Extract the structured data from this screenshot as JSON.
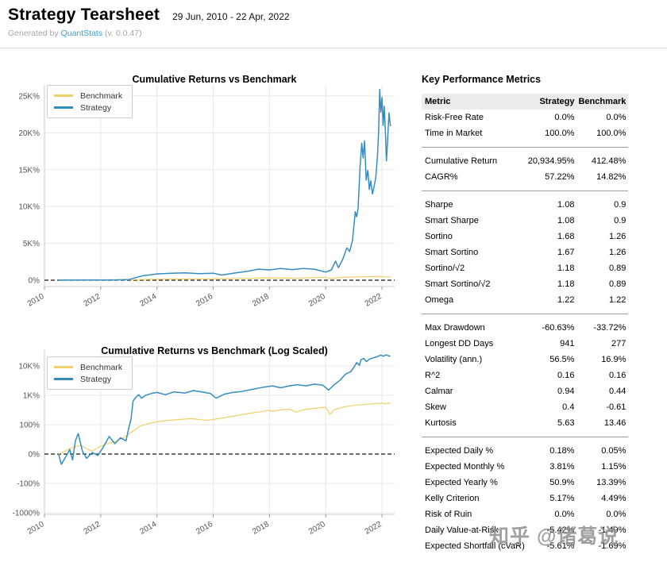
{
  "header": {
    "title": "Strategy Tearsheet",
    "date_range": "29 Jun, 2010 - 22 Apr, 2022",
    "generated_prefix": "Generated by",
    "generator_name": "QuantStats",
    "generator_version": "(v. 0.0.47)"
  },
  "colors": {
    "strategy": "#348dc1",
    "benchmark": "#f2cf68",
    "grid": "#e8e8e8",
    "spine": "#cccccc",
    "zero_line": "#111111",
    "tick_label": "#555555",
    "link": "#35a2d9"
  },
  "watermark": "知乎 @诸葛说",
  "chart_data": [
    {
      "type": "line",
      "title": "Cumulative Returns vs Benchmark",
      "xlabel": "",
      "ylabel": "",
      "yscale": "linear",
      "grid": true,
      "legend": [
        "Benchmark",
        "Strategy"
      ],
      "legend_position": "upper-left",
      "xlim": [
        2010.0,
        2022.45
      ],
      "ylim": [
        -860,
        26500
      ],
      "xticks": [
        2010,
        2012,
        2014,
        2016,
        2018,
        2020,
        2022
      ],
      "yticks": [
        {
          "v": 25000,
          "label": "25K%"
        },
        {
          "v": 20000,
          "label": "20K%"
        },
        {
          "v": 15000,
          "label": "15K%"
        },
        {
          "v": 10000,
          "label": "10K%"
        },
        {
          "v": 5000,
          "label": "5K%"
        },
        {
          "v": 0,
          "label": "0%"
        }
      ],
      "zero_line_dashed": true,
      "series": [
        {
          "name": "Benchmark",
          "color_key": "benchmark",
          "width": 1.2,
          "points": [
            [
              2010.5,
              0
            ],
            [
              2012,
              30
            ],
            [
              2013,
              70
            ],
            [
              2014,
              125
            ],
            [
              2015,
              160
            ],
            [
              2016,
              170
            ],
            [
              2017,
              245
            ],
            [
              2018,
              310
            ],
            [
              2018.95,
              270
            ],
            [
              2019.5,
              350
            ],
            [
              2020,
              390
            ],
            [
              2020.15,
              230
            ],
            [
              2020.5,
              370
            ],
            [
              2021,
              450
            ],
            [
              2021.5,
              490
            ],
            [
              2022,
              500
            ],
            [
              2022.3,
              412
            ]
          ]
        },
        {
          "name": "Strategy",
          "color_key": "strategy",
          "width": 1.5,
          "points": [
            [
              2010.5,
              10
            ],
            [
              2011.5,
              20
            ],
            [
              2012.5,
              40
            ],
            [
              2013.0,
              80
            ],
            [
              2013.2,
              300
            ],
            [
              2013.5,
              600
            ],
            [
              2014.0,
              850
            ],
            [
              2014.5,
              950
            ],
            [
              2015.0,
              1000
            ],
            [
              2015.5,
              900
            ],
            [
              2016.0,
              950
            ],
            [
              2016.3,
              700
            ],
            [
              2016.8,
              1000
            ],
            [
              2017.2,
              1200
            ],
            [
              2017.6,
              1500
            ],
            [
              2018.0,
              1400
            ],
            [
              2018.4,
              1600
            ],
            [
              2018.8,
              1450
            ],
            [
              2019.2,
              1600
            ],
            [
              2019.6,
              1500
            ],
            [
              2020.0,
              1100
            ],
            [
              2020.2,
              1400
            ],
            [
              2020.35,
              2600
            ],
            [
              2020.45,
              1700
            ],
            [
              2020.6,
              2800
            ],
            [
              2020.75,
              4400
            ],
            [
              2020.85,
              3900
            ],
            [
              2020.95,
              5400
            ],
            [
              2021.05,
              9300
            ],
            [
              2021.1,
              8600
            ],
            [
              2021.15,
              9800
            ],
            [
              2021.22,
              15300
            ],
            [
              2021.28,
              18600
            ],
            [
              2021.33,
              16600
            ],
            [
              2021.38,
              18900
            ],
            [
              2021.44,
              13600
            ],
            [
              2021.5,
              14900
            ],
            [
              2021.55,
              12300
            ],
            [
              2021.6,
              13500
            ],
            [
              2021.66,
              11700
            ],
            [
              2021.72,
              12700
            ],
            [
              2021.78,
              14000
            ],
            [
              2021.84,
              16900
            ],
            [
              2021.88,
              20100
            ],
            [
              2021.92,
              25900
            ],
            [
              2021.96,
              22800
            ],
            [
              2022.0,
              24800
            ],
            [
              2022.04,
              21000
            ],
            [
              2022.08,
              23600
            ],
            [
              2022.12,
              20300
            ],
            [
              2022.16,
              16200
            ],
            [
              2022.2,
              18900
            ],
            [
              2022.25,
              22700
            ],
            [
              2022.3,
              20900
            ]
          ]
        }
      ]
    },
    {
      "type": "line",
      "title": "Cumulative Returns vs Benchmark (Log Scaled)",
      "xlabel": "",
      "ylabel": "",
      "yscale": "symlog",
      "linthresh": 100,
      "tlim": [
        -2.054,
        3.54
      ],
      "grid": true,
      "legend": [
        "Benchmark",
        "Strategy"
      ],
      "legend_position": "upper-left",
      "xlim": [
        2010.0,
        2022.45
      ],
      "xticks": [
        2010,
        2012,
        2014,
        2016,
        2018,
        2020,
        2022
      ],
      "yticks": [
        {
          "v": 10000,
          "label": "10K%"
        },
        {
          "v": 1000,
          "label": "1K%"
        },
        {
          "v": 100,
          "label": "100%"
        },
        {
          "v": 0,
          "label": "0%"
        },
        {
          "v": -100,
          "label": "-100%"
        },
        {
          "v": -1000,
          "label": "-1000%"
        }
      ],
      "zero_line_dashed": true,
      "series": [
        {
          "name": "Benchmark",
          "color_key": "benchmark",
          "width": 1.2,
          "points": [
            [
              2010.5,
              0
            ],
            [
              2010.7,
              8
            ],
            [
              2010.9,
              18
            ],
            [
              2011.1,
              25
            ],
            [
              2011.3,
              30
            ],
            [
              2011.5,
              18
            ],
            [
              2011.7,
              10
            ],
            [
              2011.9,
              22
            ],
            [
              2012.2,
              35
            ],
            [
              2012.5,
              42
            ],
            [
              2012.8,
              55
            ],
            [
              2013.1,
              75
            ],
            [
              2013.4,
              95
            ],
            [
              2013.7,
              110
            ],
            [
              2014.0,
              125
            ],
            [
              2014.4,
              140
            ],
            [
              2014.8,
              150
            ],
            [
              2015.2,
              160
            ],
            [
              2015.5,
              150
            ],
            [
              2015.8,
              140
            ],
            [
              2016.1,
              155
            ],
            [
              2016.5,
              180
            ],
            [
              2016.9,
              210
            ],
            [
              2017.3,
              245
            ],
            [
              2017.7,
              275
            ],
            [
              2018.0,
              310
            ],
            [
              2018.1,
              285
            ],
            [
              2018.4,
              320
            ],
            [
              2018.7,
              335
            ],
            [
              2018.95,
              265
            ],
            [
              2019.2,
              320
            ],
            [
              2019.5,
              350
            ],
            [
              2019.8,
              375
            ],
            [
              2020.0,
              390
            ],
            [
              2020.15,
              225
            ],
            [
              2020.3,
              320
            ],
            [
              2020.5,
              370
            ],
            [
              2020.7,
              410
            ],
            [
              2020.9,
              440
            ],
            [
              2021.1,
              465
            ],
            [
              2021.3,
              480
            ],
            [
              2021.5,
              500
            ],
            [
              2021.7,
              520
            ],
            [
              2021.9,
              530
            ],
            [
              2022.0,
              545
            ],
            [
              2022.1,
              515
            ],
            [
              2022.2,
              535
            ],
            [
              2022.3,
              520
            ]
          ]
        },
        {
          "name": "Strategy",
          "color_key": "strategy",
          "width": 1.5,
          "points": [
            [
              2010.5,
              0
            ],
            [
              2010.6,
              -35
            ],
            [
              2010.75,
              -10
            ],
            [
              2010.9,
              15
            ],
            [
              2011.0,
              -20
            ],
            [
              2011.1,
              45
            ],
            [
              2011.2,
              70
            ],
            [
              2011.35,
              10
            ],
            [
              2011.5,
              -15
            ],
            [
              2011.7,
              5
            ],
            [
              2011.9,
              -5
            ],
            [
              2012.1,
              25
            ],
            [
              2012.3,
              60
            ],
            [
              2012.5,
              35
            ],
            [
              2012.7,
              55
            ],
            [
              2012.9,
              45
            ],
            [
              2013.0,
              90
            ],
            [
              2013.08,
              160
            ],
            [
              2013.15,
              650
            ],
            [
              2013.25,
              850
            ],
            [
              2013.35,
              1050
            ],
            [
              2013.45,
              800
            ],
            [
              2013.6,
              1000
            ],
            [
              2013.8,
              1150
            ],
            [
              2014.0,
              1250
            ],
            [
              2014.3,
              1050
            ],
            [
              2014.6,
              1300
            ],
            [
              2015.0,
              1200
            ],
            [
              2015.3,
              1450
            ],
            [
              2015.6,
              1300
            ],
            [
              2015.9,
              1150
            ],
            [
              2016.1,
              800
            ],
            [
              2016.4,
              1100
            ],
            [
              2016.7,
              1250
            ],
            [
              2017.0,
              1350
            ],
            [
              2017.4,
              1600
            ],
            [
              2017.8,
              1900
            ],
            [
              2018.1,
              2100
            ],
            [
              2018.4,
              1800
            ],
            [
              2018.7,
              2100
            ],
            [
              2019.0,
              2300
            ],
            [
              2019.3,
              2100
            ],
            [
              2019.6,
              2400
            ],
            [
              2019.9,
              2200
            ],
            [
              2020.1,
              1500
            ],
            [
              2020.3,
              2300
            ],
            [
              2020.5,
              3200
            ],
            [
              2020.7,
              5200
            ],
            [
              2020.9,
              6500
            ],
            [
              2021.0,
              9000
            ],
            [
              2021.1,
              13000
            ],
            [
              2021.2,
              10500
            ],
            [
              2021.25,
              16000
            ],
            [
              2021.35,
              18000
            ],
            [
              2021.45,
              14000
            ],
            [
              2021.55,
              17000
            ],
            [
              2021.7,
              19000
            ],
            [
              2021.85,
              21000
            ],
            [
              2021.95,
              23500
            ],
            [
              2022.05,
              21500
            ],
            [
              2022.15,
              23800
            ],
            [
              2022.25,
              21500
            ],
            [
              2022.3,
              22000
            ]
          ]
        }
      ]
    }
  ],
  "metrics": {
    "title": "Key Performance Metrics",
    "columns": [
      "Metric",
      "Strategy",
      "Benchmark"
    ],
    "groups": [
      [
        [
          "Risk-Free Rate",
          "0.0%",
          "0.0%"
        ],
        [
          "Time in Market",
          "100.0%",
          "100.0%"
        ]
      ],
      [
        [
          "Cumulative Return",
          "20,934.95%",
          "412.48%"
        ],
        [
          "CAGR%",
          "57.22%",
          "14.82%"
        ]
      ],
      [
        [
          "Sharpe",
          "1.08",
          "0.9"
        ],
        [
          "Smart Sharpe",
          "1.08",
          "0.9"
        ],
        [
          "Sortino",
          "1.68",
          "1.26"
        ],
        [
          "Smart Sortino",
          "1.67",
          "1.26"
        ],
        [
          "Sortino/√2",
          "1.18",
          "0.89"
        ],
        [
          "Smart Sortino/√2",
          "1.18",
          "0.89"
        ],
        [
          "Omega",
          "1.22",
          "1.22"
        ]
      ],
      [
        [
          "Max Drawdown",
          "-60.63%",
          "-33.72%"
        ],
        [
          "Longest DD Days",
          "941",
          "277"
        ],
        [
          "Volatility (ann.)",
          "56.5%",
          "16.9%"
        ],
        [
          "R^2",
          "0.16",
          "0.16"
        ],
        [
          "Calmar",
          "0.94",
          "0.44"
        ],
        [
          "Skew",
          "0.4",
          "-0.61"
        ],
        [
          "Kurtosis",
          "5.63",
          "13.46"
        ]
      ],
      [
        [
          "Expected Daily %",
          "0.18%",
          "0.05%"
        ],
        [
          "Expected Monthly %",
          "3.81%",
          "1.15%"
        ],
        [
          "Expected Yearly %",
          "50.9%",
          "13.39%"
        ],
        [
          "Kelly Criterion",
          "5.17%",
          "4.49%"
        ],
        [
          "Risk of Ruin",
          "0.0%",
          "0.0%"
        ],
        [
          "Daily Value-at-Risk",
          "-5.42%",
          "-1.49%"
        ],
        [
          "Expected Shortfall (cVaR)",
          "-5.61%",
          "-1.69%"
        ]
      ]
    ]
  }
}
